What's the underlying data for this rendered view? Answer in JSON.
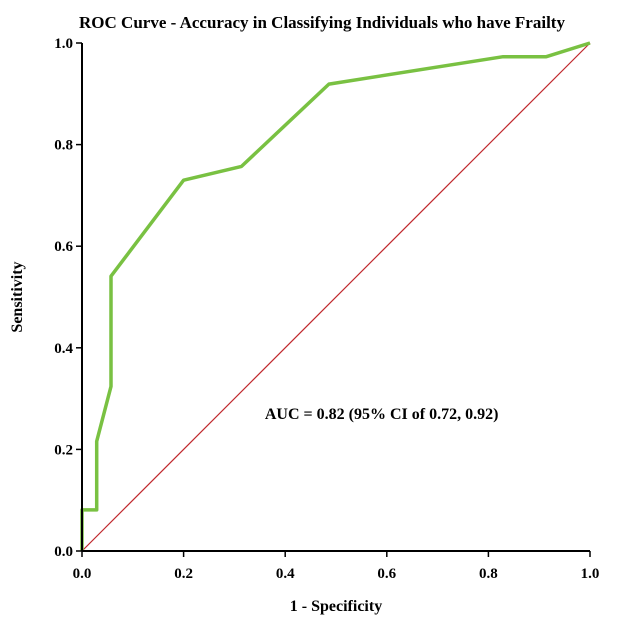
{
  "chart_data": {
    "type": "line",
    "title": "ROC Curve - Accuracy in Classifying Individuals who have Frailty",
    "xlabel": "1 - Specificity",
    "ylabel": "Sensitivity",
    "xlim": [
      0.0,
      1.0
    ],
    "ylim": [
      0.0,
      1.0
    ],
    "xticks": [
      "0.0",
      "0.2",
      "0.4",
      "0.6",
      "0.8",
      "1.0"
    ],
    "yticks": [
      "0.0",
      "0.2",
      "0.4",
      "0.6",
      "0.8",
      "1.0"
    ],
    "grid": false,
    "series": [
      {
        "color": "#79c142",
        "x": [
          0.0,
          0.0,
          0.029,
          0.029,
          0.057,
          0.057,
          0.057,
          0.2,
          0.314,
          0.486,
          0.829,
          0.914,
          1.0
        ],
        "y": [
          0.0,
          0.081,
          0.081,
          0.216,
          0.324,
          0.378,
          0.541,
          0.73,
          0.757,
          0.919,
          0.973,
          0.973,
          1.0
        ]
      },
      {
        "color": "#c0282d",
        "x": [
          0.0,
          1.0
        ],
        "y": [
          0.0,
          1.0
        ]
      }
    ],
    "annotations": [
      {
        "text": "AUC = 0.82 (95% CI of 0.72, 0.92)",
        "x": 0.36,
        "y": 0.26
      }
    ]
  }
}
